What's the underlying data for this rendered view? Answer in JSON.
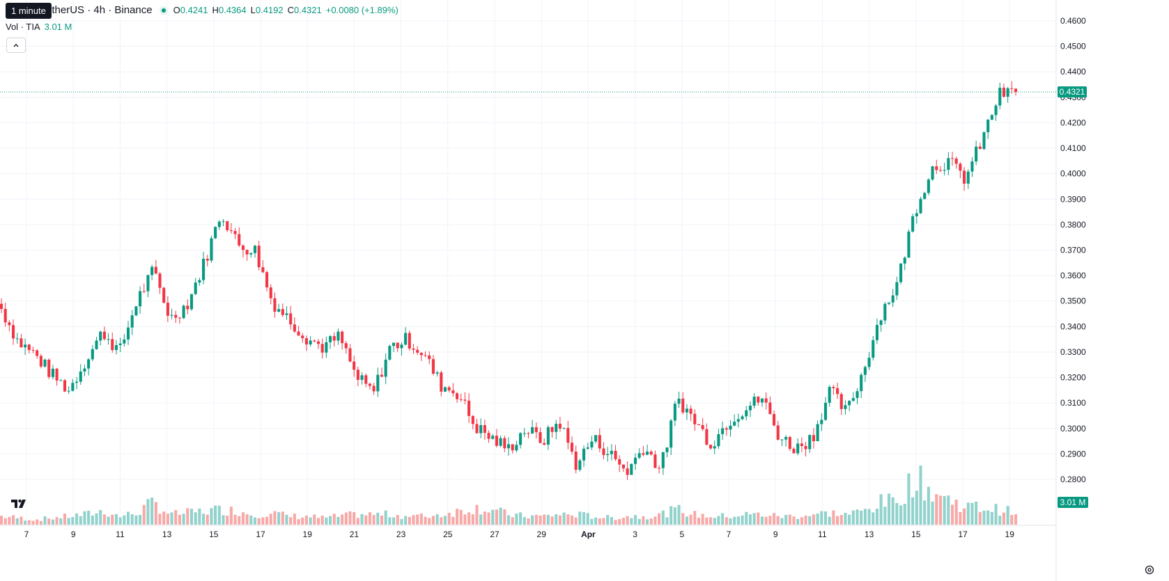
{
  "header": {
    "symbol": "etherUS · 4h · Binance",
    "tooltip": "1 minute",
    "ohlc": {
      "o_label": "O",
      "o": "0.4241",
      "h_label": "H",
      "h": "0.4364",
      "l_label": "L",
      "l": "0.4192",
      "c_label": "C",
      "c": "0.4321",
      "change": "+0.0080 (+1.89%)"
    },
    "volume_label": "Vol · TIA",
    "volume_value": "3.01 M"
  },
  "price_badge": "0.4321",
  "volume_badge": "3.01 M",
  "colors": {
    "up": "#089981",
    "down": "#F23645",
    "up_vol": "#92D2CC",
    "down_vol": "#F7A9A7"
  },
  "chart_data": {
    "type": "candlestick",
    "timeframe": "4h",
    "y_range": [
      0.275,
      0.462
    ],
    "y_ticks": [
      "0.4600",
      "0.4500",
      "0.4400",
      "0.4300",
      "0.4200",
      "0.4100",
      "0.4000",
      "0.3900",
      "0.3800",
      "0.3700",
      "0.3600",
      "0.3500",
      "0.3400",
      "0.3300",
      "0.3200",
      "0.3100",
      "0.3000",
      "0.2900",
      "0.2800"
    ],
    "x_labels": [
      "7",
      "9",
      "11",
      "13",
      "15",
      "17",
      "19",
      "21",
      "23",
      "25",
      "27",
      "29",
      "Apr",
      "3",
      "5",
      "7",
      "9",
      "11",
      "13",
      "15",
      "17",
      "19"
    ],
    "last_price": 0.4321,
    "anchors": [
      {
        "label": "6",
        "close": 0.347,
        "vol": 0.5
      },
      {
        "label": "6.5",
        "close": 0.334,
        "vol": 0.4
      },
      {
        "label": "7",
        "close": 0.329,
        "vol": 0.3
      },
      {
        "label": "8",
        "close": 0.321,
        "vol": 0.4
      },
      {
        "label": "9",
        "close": 0.315,
        "vol": 0.5
      },
      {
        "label": "10",
        "close": 0.327,
        "vol": 0.6
      },
      {
        "label": "11",
        "close": 0.338,
        "vol": 0.8
      },
      {
        "label": "12",
        "close": 0.33,
        "vol": 0.5
      },
      {
        "label": "13",
        "close": 0.35,
        "vol": 0.7
      },
      {
        "label": "13.5",
        "close": 0.362,
        "vol": 1.3
      },
      {
        "label": "14",
        "close": 0.343,
        "vol": 0.6
      },
      {
        "label": "15",
        "close": 0.349,
        "vol": 0.7
      },
      {
        "label": "16",
        "close": 0.365,
        "vol": 0.8
      },
      {
        "label": "16.7",
        "close": 0.385,
        "vol": 0.9
      },
      {
        "label": "17",
        "close": 0.372,
        "vol": 0.8
      },
      {
        "label": "18",
        "close": 0.37,
        "vol": 0.6
      },
      {
        "label": "18.6",
        "close": 0.35,
        "vol": 0.7
      },
      {
        "label": "19",
        "close": 0.343,
        "vol": 0.5
      },
      {
        "label": "20",
        "close": 0.336,
        "vol": 0.5
      },
      {
        "label": "21",
        "close": 0.332,
        "vol": 0.4
      },
      {
        "label": "22",
        "close": 0.336,
        "vol": 0.5
      },
      {
        "label": "22.5",
        "close": 0.32,
        "vol": 0.6
      },
      {
        "label": "23",
        "close": 0.314,
        "vol": 0.6
      },
      {
        "label": "24",
        "close": 0.332,
        "vol": 0.6
      },
      {
        "label": "25",
        "close": 0.335,
        "vol": 0.5
      },
      {
        "label": "26",
        "close": 0.329,
        "vol": 0.5
      },
      {
        "label": "26.5",
        "close": 0.317,
        "vol": 0.6
      },
      {
        "label": "27",
        "close": 0.314,
        "vol": 0.8
      },
      {
        "label": "27.5",
        "close": 0.301,
        "vol": 1.0
      },
      {
        "label": "28",
        "close": 0.296,
        "vol": 0.9
      },
      {
        "label": "29",
        "close": 0.292,
        "vol": 0.6
      },
      {
        "label": "30",
        "close": 0.3,
        "vol": 0.5
      },
      {
        "label": "31",
        "close": 0.295,
        "vol": 0.5
      },
      {
        "label": "Apr",
        "close": 0.303,
        "vol": 0.6
      },
      {
        "label": "2",
        "close": 0.286,
        "vol": 0.6
      },
      {
        "label": "3",
        "close": 0.296,
        "vol": 0.5
      },
      {
        "label": "4",
        "close": 0.29,
        "vol": 0.4
      },
      {
        "label": "5",
        "close": 0.283,
        "vol": 0.5
      },
      {
        "label": "6",
        "close": 0.293,
        "vol": 0.5
      },
      {
        "label": "7",
        "close": 0.284,
        "vol": 0.6
      },
      {
        "label": "7.7",
        "close": 0.312,
        "vol": 0.9
      },
      {
        "label": "8.5",
        "close": 0.303,
        "vol": 0.6
      },
      {
        "label": "9",
        "close": 0.294,
        "vol": 0.5
      },
      {
        "label": "10",
        "close": 0.303,
        "vol": 0.5
      },
      {
        "label": "11",
        "close": 0.308,
        "vol": 0.6
      },
      {
        "label": "11.8",
        "close": 0.312,
        "vol": 0.6
      },
      {
        "label": "12.3",
        "close": 0.297,
        "vol": 0.5
      },
      {
        "label": "13",
        "close": 0.292,
        "vol": 0.5
      },
      {
        "label": "13.5",
        "close": 0.297,
        "vol": 0.6
      },
      {
        "label": "14",
        "close": 0.315,
        "vol": 0.7
      },
      {
        "label": "15",
        "close": 0.306,
        "vol": 0.6
      },
      {
        "label": "15.5",
        "close": 0.323,
        "vol": 0.8
      },
      {
        "label": "16",
        "close": 0.345,
        "vol": 1.3
      },
      {
        "label": "16.3",
        "close": 0.357,
        "vol": 1.4
      },
      {
        "label": "16.5",
        "close": 0.385,
        "vol": 2.8
      },
      {
        "label": "16.7",
        "close": 0.402,
        "vol": 2.0
      },
      {
        "label": "17",
        "close": 0.405,
        "vol": 1.5
      },
      {
        "label": "17.4",
        "close": 0.398,
        "vol": 1.1
      },
      {
        "label": "17.7",
        "close": 0.413,
        "vol": 1.0
      },
      {
        "label": "18",
        "close": 0.431,
        "vol": 0.9
      },
      {
        "label": "18.2",
        "close": 0.4321,
        "vol": 0.7
      }
    ],
    "candle_count": 257,
    "grid": true,
    "legend_position": "top-left"
  }
}
